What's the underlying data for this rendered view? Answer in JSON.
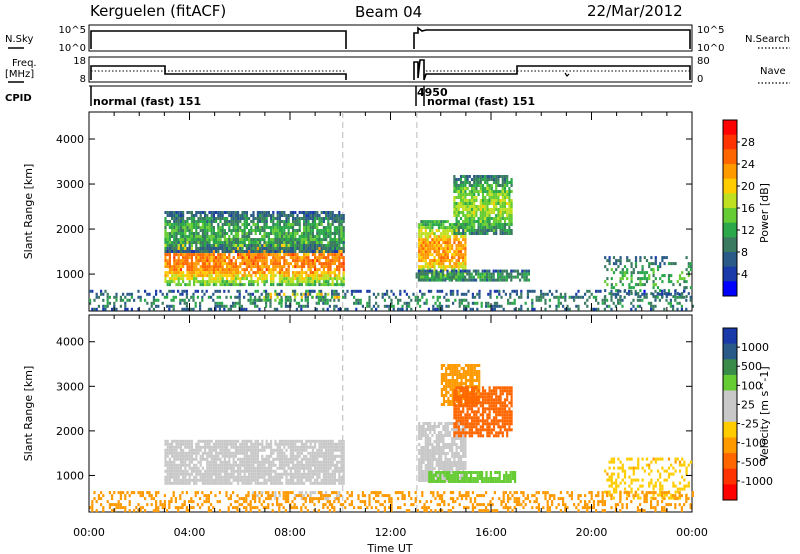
{
  "header": {
    "site": "Kerguelen (fitACF)",
    "beam": "Beam 04",
    "date": "22/Mar/2012"
  },
  "strip_labels": {
    "nsky": "N.Sky",
    "nsearch": "N.Search",
    "freq_top": "Freq.",
    "freq_unit": "[MHz]",
    "nave": "Nave",
    "cpid": "CPID",
    "nsky_ticks": [
      "10^5",
      "10^0"
    ],
    "nsearch_ticks": [
      "10^5",
      "10^0"
    ],
    "freq_ticks": [
      "18",
      "8"
    ],
    "nave_ticks": [
      "80",
      "0"
    ]
  },
  "cpid_labels": [
    {
      "text": "normal (fast) 151"
    },
    {
      "text": "4950"
    },
    {
      "text": "normal (fast) 151"
    }
  ],
  "x_axis": {
    "label": "Time UT",
    "ticks": [
      "00:00",
      "04:00",
      "08:00",
      "12:00",
      "16:00",
      "20:00",
      "00:00"
    ]
  },
  "power_colorbar": {
    "title": "Power [dB]",
    "ticks": [
      "28",
      "24",
      "20",
      "16",
      "12",
      "8",
      "4"
    ],
    "colors": [
      "#ff0000",
      "#ff3300",
      "#ff6600",
      "#ff9900",
      "#ffcc00",
      "#bfe020",
      "#66cc33",
      "#2aa84a",
      "#3a7a60",
      "#2a5a88",
      "#1a3aaa",
      "#0000ff"
    ]
  },
  "velocity_colorbar": {
    "title": "Velocity [m s^-1]",
    "ticks": [
      "1000",
      "500",
      "100",
      "25",
      "-25",
      "-100",
      "-500",
      "-1000"
    ],
    "colors": [
      "#1a3aaa",
      "#2a5a88",
      "#3a8a4a",
      "#66cc33",
      "#c8c8c8",
      "#c8c8c8",
      "#ffcc00",
      "#ff9900",
      "#ff6600",
      "#ff3300",
      "#ff0000"
    ]
  },
  "chart_data": [
    {
      "type": "heatmap",
      "title": "Power [dB]",
      "xlabel": "Time UT",
      "ylabel": "Slant Range [km]",
      "xlim": [
        0,
        24
      ],
      "ylim": [
        180,
        4600
      ],
      "yticks": [
        1000,
        2000,
        3000,
        4000
      ],
      "colorbar_range": [
        0,
        32
      ],
      "regions": [
        {
          "t0": 3.0,
          "t1": 10.1,
          "r0": 800,
          "r1": 1800,
          "value": 24
        },
        {
          "t0": 3.0,
          "t1": 10.1,
          "r0": 1500,
          "r1": 2400,
          "value": 12
        },
        {
          "t0": 6.5,
          "t1": 10.0,
          "r0": 450,
          "r1": 650,
          "value": 20
        },
        {
          "t0": 13.1,
          "t1": 15.0,
          "r0": 900,
          "r1": 2200,
          "value": 22
        },
        {
          "t0": 14.5,
          "t1": 16.8,
          "r0": 1900,
          "r1": 3200,
          "value": 16
        },
        {
          "t0": 13.0,
          "t1": 17.5,
          "r0": 850,
          "r1": 1100,
          "value": 12
        },
        {
          "t0": 20.5,
          "t1": 24.0,
          "r0": 500,
          "r1": 1400,
          "value": 12
        },
        {
          "t0": 0.0,
          "t1": 24.0,
          "r0": 200,
          "r1": 650,
          "value": 10
        }
      ]
    },
    {
      "type": "heatmap",
      "title": "Velocity [m s^-1]",
      "xlabel": "Time UT",
      "ylabel": "Slant Range [km]",
      "xlim": [
        0,
        24
      ],
      "ylim": [
        180,
        4600
      ],
      "yticks": [
        1000,
        2000,
        3000,
        4000
      ],
      "colorbar_ticks": [
        1000,
        500,
        100,
        25,
        -25,
        -100,
        -500,
        -1000
      ],
      "regions": [
        {
          "t0": 3.0,
          "t1": 10.1,
          "r0": 800,
          "r1": 1800,
          "value": 0
        },
        {
          "t0": 6.5,
          "t1": 10.0,
          "r0": 450,
          "r1": 650,
          "value": 0
        },
        {
          "t0": 13.1,
          "t1": 15.0,
          "r0": 900,
          "r1": 2200,
          "value": 0
        },
        {
          "t0": 14.0,
          "t1": 15.5,
          "r0": 2600,
          "r1": 3500,
          "value": -100
        },
        {
          "t0": 14.5,
          "t1": 16.8,
          "r0": 1900,
          "r1": 3000,
          "value": -200
        },
        {
          "t0": 13.5,
          "t1": 17.0,
          "r0": 850,
          "r1": 1100,
          "value": 100
        },
        {
          "t0": 20.5,
          "t1": 24.0,
          "r0": 500,
          "r1": 1400,
          "value": -50
        },
        {
          "t0": 0.0,
          "t1": 24.0,
          "r0": 200,
          "r1": 650,
          "value": -100
        }
      ]
    }
  ]
}
